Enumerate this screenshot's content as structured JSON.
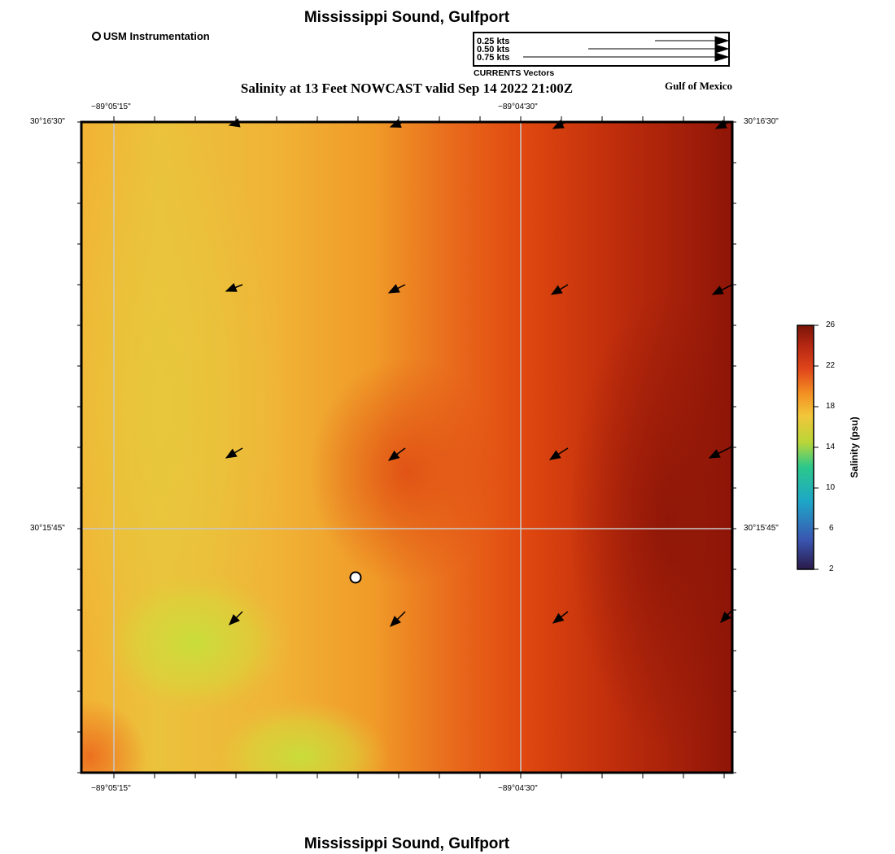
{
  "title": "Mississippi Sound, Gulfport",
  "footer_title": "Mississippi Sound, Gulfport",
  "subtitle": "Salinity at 13 Feet NOWCAST valid Sep 14 2022 21:00Z",
  "region_label": "Gulf of Mexico",
  "station_legend": "USM Instrumentation",
  "vector_legend": {
    "caption": "CURRENTS Vectors",
    "scales": [
      "0.25 kts",
      "0.50 kts",
      "0.75 kts"
    ]
  },
  "axes": {
    "lon_ticks": [
      "−89°05'15\"",
      "−89°04'30\""
    ],
    "lat_ticks": [
      "30°16'30\"",
      "30°15'45\""
    ]
  },
  "colorbar": {
    "title": "Salinity (psu)",
    "ticks": [
      "26",
      "22",
      "18",
      "14",
      "10",
      "6",
      "2"
    ],
    "range": [
      2,
      26
    ],
    "colors": [
      "#2a1a4a",
      "#3a55b0",
      "#1ea7c8",
      "#2cc88a",
      "#b9d638",
      "#f2c63a",
      "#f39023",
      "#e0461a",
      "#b42612",
      "#7a1508"
    ]
  },
  "salinity_field_colors": {
    "west_low": "#c6df3a",
    "west": "#ebc23c",
    "mid": "#f09a28",
    "east": "#e0480f",
    "far_east": "#8e1508"
  },
  "station_marker": "white-circle"
}
